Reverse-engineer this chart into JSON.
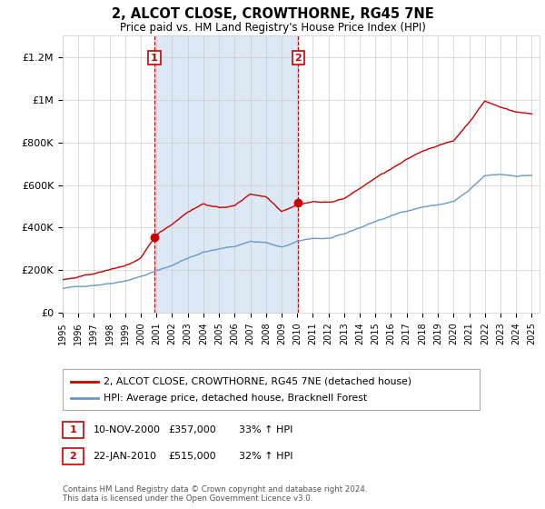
{
  "title": "2, ALCOT CLOSE, CROWTHORNE, RG45 7NE",
  "subtitle": "Price paid vs. HM Land Registry's House Price Index (HPI)",
  "legend_line1": "2, ALCOT CLOSE, CROWTHORNE, RG45 7NE (detached house)",
  "legend_line2": "HPI: Average price, detached house, Bracknell Forest",
  "sale1_label": "1",
  "sale1_date": "10-NOV-2000",
  "sale1_price": "£357,000",
  "sale1_hpi": "33% ↑ HPI",
  "sale2_label": "2",
  "sale2_date": "22-JAN-2010",
  "sale2_price": "£515,000",
  "sale2_hpi": "32% ↑ HPI",
  "footnote": "Contains HM Land Registry data © Crown copyright and database right 2024.\nThis data is licensed under the Open Government Licence v3.0.",
  "property_color": "#cc0000",
  "hpi_color": "#6699cc",
  "shade_color": "#dce9f5",
  "sale_marker_color": "#cc0000",
  "vline_color": "#cc0000",
  "ylim": [
    0,
    1300000
  ],
  "yticks": [
    0,
    200000,
    400000,
    600000,
    800000,
    1000000,
    1200000
  ],
  "ytick_labels": [
    "£0",
    "£200K",
    "£400K",
    "£600K",
    "£800K",
    "£1M",
    "£1.2M"
  ],
  "sale1_year": 2000.87,
  "sale1_price_val": 357000,
  "sale2_year": 2010.06,
  "sale2_price_val": 515000,
  "background_color": "#ffffff",
  "grid_color": "#cccccc"
}
